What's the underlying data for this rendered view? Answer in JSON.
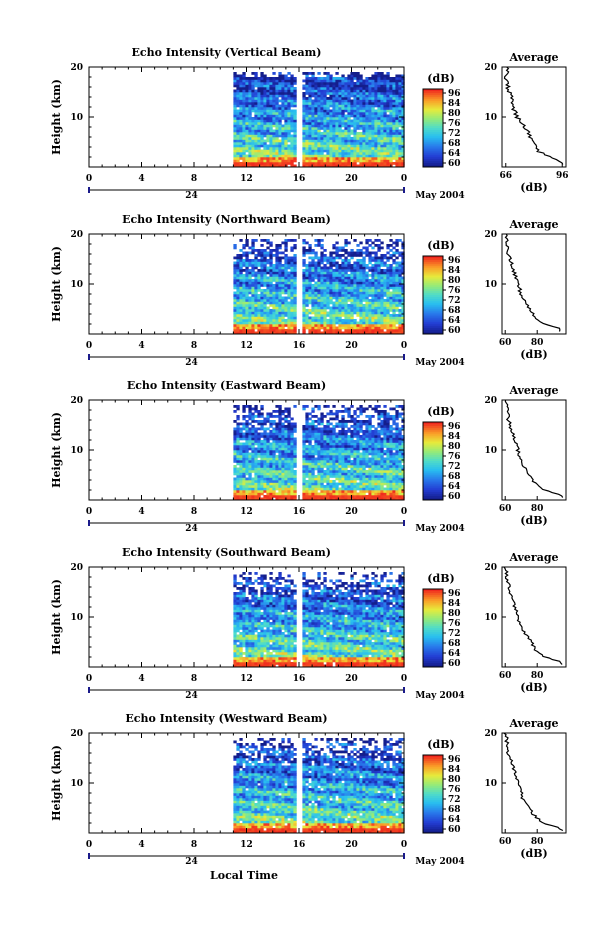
{
  "figure": {
    "x_axis_label": "Local Time",
    "date_label": "May 2004",
    "day_label": "24"
  },
  "chart_data": [
    {
      "type": "heatmap",
      "title": "Echo Intensity (Vertical Beam)",
      "ylabel": "Height (km)",
      "x_ticks": [
        "0",
        "4",
        "8",
        "12",
        "16",
        "20",
        "0"
      ],
      "y_ticks": [
        "20",
        "10"
      ],
      "xlim": [
        0,
        24
      ],
      "ylim": [
        0,
        20
      ],
      "data_start_hour": 11,
      "gap_hour": 16,
      "colorbar": {
        "label": "(dB)",
        "ticks": [
          "96",
          "84",
          "80",
          "76",
          "72",
          "68",
          "64",
          "60"
        ],
        "range": [
          60,
          96
        ]
      },
      "profile": {
        "title": "Average",
        "xlabel": "(dB)",
        "x_ticks": [
          "66",
          "96"
        ],
        "xlim": [
          64,
          98
        ],
        "heights": [
          1,
          2,
          3,
          4,
          5,
          6,
          7,
          8,
          9,
          10,
          11,
          12,
          13,
          14,
          15,
          16,
          17,
          18,
          19,
          20
        ],
        "values": [
          96,
          90,
          84,
          82,
          80,
          79,
          78,
          76,
          74,
          72,
          71,
          70,
          70,
          69,
          68,
          67,
          67,
          66,
          67,
          66
        ]
      }
    },
    {
      "type": "heatmap",
      "title": "Echo Intensity (Northward Beam)",
      "ylabel": "Height (km)",
      "x_ticks": [
        "0",
        "4",
        "8",
        "12",
        "16",
        "20",
        "0"
      ],
      "y_ticks": [
        "20",
        "10"
      ],
      "xlim": [
        0,
        24
      ],
      "ylim": [
        0,
        20
      ],
      "data_start_hour": 11,
      "gap_hour": 16,
      "colorbar": {
        "label": "(dB)",
        "ticks": [
          "96",
          "84",
          "80",
          "76",
          "72",
          "68",
          "64",
          "60"
        ],
        "range": [
          60,
          96
        ]
      },
      "profile": {
        "title": "Average",
        "xlabel": "(dB)",
        "x_ticks": [
          "60",
          "80"
        ],
        "xlim": [
          58,
          98
        ],
        "heights": [
          1,
          2,
          3,
          4,
          5,
          6,
          7,
          8,
          9,
          10,
          11,
          12,
          13,
          14,
          15,
          16,
          17,
          18,
          19,
          20
        ],
        "values": [
          95,
          85,
          80,
          77,
          75,
          73,
          72,
          70,
          69,
          68,
          67,
          66,
          65,
          64,
          63,
          62,
          62,
          61,
          61,
          60
        ]
      }
    },
    {
      "type": "heatmap",
      "title": "Echo Intensity (Eastward Beam)",
      "ylabel": "Height (km)",
      "x_ticks": [
        "0",
        "4",
        "8",
        "12",
        "16",
        "20",
        "0"
      ],
      "y_ticks": [
        "20",
        "10"
      ],
      "xlim": [
        0,
        24
      ],
      "ylim": [
        0,
        20
      ],
      "data_start_hour": 11,
      "gap_hour": 16,
      "colorbar": {
        "label": "(dB)",
        "ticks": [
          "96",
          "84",
          "80",
          "76",
          "72",
          "68",
          "64",
          "60"
        ],
        "range": [
          60,
          96
        ]
      },
      "profile": {
        "title": "Average",
        "xlabel": "(dB)",
        "x_ticks": [
          "60",
          "80"
        ],
        "xlim": [
          58,
          98
        ],
        "heights": [
          1,
          2,
          3,
          4,
          5,
          6,
          7,
          8,
          9,
          10,
          11,
          12,
          13,
          14,
          15,
          16,
          17,
          18,
          19,
          20
        ],
        "values": [
          95,
          84,
          80,
          77,
          75,
          73,
          71,
          70,
          69,
          68,
          67,
          66,
          65,
          64,
          63,
          62,
          62,
          61,
          61,
          60
        ]
      }
    },
    {
      "type": "heatmap",
      "title": "Echo Intensity (Southward Beam)",
      "ylabel": "Height (km)",
      "x_ticks": [
        "0",
        "4",
        "8",
        "12",
        "16",
        "20",
        "0"
      ],
      "y_ticks": [
        "20",
        "10"
      ],
      "xlim": [
        0,
        24
      ],
      "ylim": [
        0,
        20
      ],
      "data_start_hour": 11,
      "gap_hour": 16,
      "colorbar": {
        "label": "(dB)",
        "ticks": [
          "96",
          "84",
          "80",
          "76",
          "72",
          "68",
          "64",
          "60"
        ],
        "range": [
          60,
          96
        ]
      },
      "profile": {
        "title": "Average",
        "xlabel": "(dB)",
        "x_ticks": [
          "60",
          "80"
        ],
        "xlim": [
          58,
          98
        ],
        "heights": [
          1,
          2,
          3,
          4,
          5,
          6,
          7,
          8,
          9,
          10,
          11,
          12,
          13,
          14,
          15,
          16,
          17,
          18,
          19,
          20
        ],
        "values": [
          95,
          85,
          80,
          78,
          76,
          74,
          72,
          71,
          69,
          68,
          67,
          66,
          65,
          64,
          63,
          62,
          62,
          61,
          61,
          60
        ]
      }
    },
    {
      "type": "heatmap",
      "title": "Echo Intensity (Westward Beam)",
      "ylabel": "Height (km)",
      "x_ticks": [
        "0",
        "4",
        "8",
        "12",
        "16",
        "20",
        "0"
      ],
      "y_ticks": [
        "20",
        "10"
      ],
      "xlim": [
        0,
        24
      ],
      "ylim": [
        0,
        20
      ],
      "data_start_hour": 11,
      "gap_hour": 16,
      "colorbar": {
        "label": "(dB)",
        "ticks": [
          "96",
          "84",
          "80",
          "76",
          "72",
          "68",
          "64",
          "60"
        ],
        "range": [
          60,
          96
        ]
      },
      "profile": {
        "title": "Average",
        "xlabel": "(dB)",
        "x_ticks": [
          "60",
          "80"
        ],
        "xlim": [
          58,
          98
        ],
        "heights": [
          1,
          2,
          3,
          4,
          5,
          6,
          7,
          8,
          9,
          10,
          11,
          12,
          13,
          14,
          15,
          16,
          17,
          18,
          19,
          20
        ],
        "values": [
          95,
          84,
          80,
          77,
          75,
          73,
          71,
          70,
          69,
          68,
          67,
          66,
          65,
          64,
          63,
          62,
          62,
          61,
          61,
          60
        ]
      }
    }
  ]
}
